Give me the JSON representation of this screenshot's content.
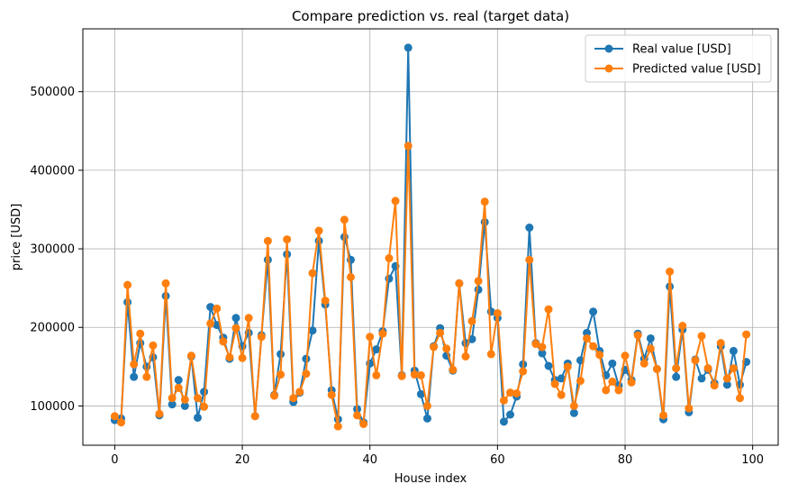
{
  "chart_data": {
    "type": "line",
    "title": "Compare prediction vs. real (target data)",
    "xlabel": "House index",
    "ylabel": "price [USD]",
    "xlim": [
      -5,
      104
    ],
    "ylim": [
      50000,
      580000
    ],
    "xticks": [
      0,
      20,
      40,
      60,
      80,
      100
    ],
    "yticks": [
      100000,
      200000,
      300000,
      400000,
      500000
    ],
    "grid": true,
    "legend_position": "top-right",
    "series": [
      {
        "name": "Real value [USD]",
        "color": "#1f77b4",
        "values": [
          82000,
          84000,
          232000,
          137000,
          180000,
          150000,
          162000,
          88000,
          240000,
          102000,
          133000,
          100000,
          163000,
          85000,
          118000,
          226000,
          203000,
          187000,
          160000,
          212000,
          176000,
          193000,
          87000,
          190000,
          286000,
          114000,
          166000,
          293000,
          105000,
          117000,
          160000,
          196000,
          310000,
          229000,
          120000,
          83000,
          315000,
          286000,
          96000,
          79000,
          154000,
          172000,
          195000,
          262000,
          278000,
          139000,
          556000,
          145000,
          115000,
          84000,
          176000,
          199000,
          164000,
          145000,
          256000,
          180000,
          185000,
          248000,
          334000,
          220000,
          212000,
          80000,
          89000,
          112000,
          153000,
          327000,
          180000,
          167000,
          151000,
          133000,
          135000,
          154000,
          91000,
          158000,
          193000,
          220000,
          170000,
          139000,
          154000,
          126000,
          146000,
          133000,
          192000,
          160000,
          186000,
          147000,
          83000,
          252000,
          137000,
          197000,
          92000,
          159000,
          135000,
          146000,
          129000,
          176000,
          127000,
          170000,
          127000,
          156000
        ]
      },
      {
        "name": "Predicted value [USD]",
        "color": "#ff7f0e",
        "values": [
          87000,
          79000,
          254000,
          153000,
          192000,
          137000,
          177000,
          90000,
          256000,
          110000,
          123000,
          108000,
          164000,
          110000,
          99000,
          205000,
          224000,
          182000,
          162000,
          199000,
          161000,
          212000,
          87000,
          188000,
          310000,
          113000,
          140000,
          312000,
          110000,
          118000,
          141000,
          269000,
          323000,
          234000,
          114000,
          74000,
          337000,
          264000,
          88000,
          77000,
          188000,
          139000,
          192000,
          288000,
          361000,
          138000,
          431000,
          140000,
          139000,
          100000,
          175000,
          193000,
          173000,
          146000,
          256000,
          163000,
          208000,
          259000,
          360000,
          166000,
          218000,
          107000,
          117000,
          116000,
          144000,
          286000,
          179000,
          175000,
          223000,
          128000,
          114000,
          150000,
          100000,
          132000,
          186000,
          176000,
          165000,
          120000,
          131000,
          120000,
          164000,
          130000,
          190000,
          154000,
          173000,
          147000,
          88000,
          271000,
          148000,
          202000,
          97000,
          158000,
          189000,
          148000,
          126000,
          180000,
          135000,
          148000,
          110000,
          191000
        ]
      }
    ]
  }
}
